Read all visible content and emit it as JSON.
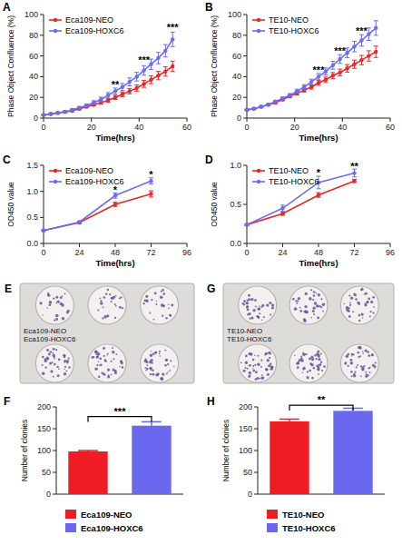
{
  "chart_data": [
    {
      "type": "line",
      "title": "A",
      "x_label": "Time(hrs)",
      "y_label": "Phase Object Confluence (%)",
      "x": [
        0,
        3,
        6,
        9,
        12,
        15,
        18,
        21,
        24,
        27,
        30,
        33,
        36,
        39,
        42,
        45,
        48,
        51,
        54
      ],
      "xlim": [
        0,
        60
      ],
      "xticks": [
        0,
        20,
        40,
        60
      ],
      "ylim": [
        0,
        100
      ],
      "yticks": [
        0,
        20,
        40,
        60,
        80,
        100
      ],
      "legend": "top-left",
      "marker": "circle",
      "series": [
        {
          "name": "Eca109-NEO",
          "color": "#e8272b",
          "values": [
            3,
            4,
            5,
            6,
            7,
            9,
            11,
            13,
            15,
            17,
            20,
            23,
            26,
            29,
            33,
            37,
            41,
            45,
            50
          ],
          "error": [
            0.5,
            0.5,
            0.5,
            0.7,
            0.8,
            1,
            1,
            1.2,
            1.5,
            1.8,
            2,
            2.3,
            2.6,
            3,
            3.3,
            3.7,
            4,
            4.5,
            5
          ]
        },
        {
          "name": "Eca109-HOXC6",
          "color": "#6b6cf0",
          "values": [
            3,
            4,
            5,
            6,
            8,
            10,
            12,
            15,
            18,
            22,
            26,
            30,
            35,
            40,
            46,
            52,
            58,
            65,
            76
          ],
          "error": [
            0.5,
            0.5,
            0.6,
            0.8,
            1,
            1.2,
            1.5,
            1.8,
            2.2,
            2.6,
            3,
            3.4,
            3.8,
            4.2,
            4.6,
            5,
            5.5,
            6,
            7
          ]
        }
      ],
      "annotations": [
        {
          "x": 30,
          "y": 32,
          "text": "**"
        },
        {
          "x": 42,
          "y": 55,
          "text": "***"
        },
        {
          "x": 54,
          "y": 87,
          "text": "***"
        }
      ]
    },
    {
      "type": "line",
      "title": "B",
      "x_label": "Time(hrs)",
      "y_label": "Phase Object Confluence (%)",
      "x": [
        0,
        3,
        6,
        9,
        12,
        15,
        18,
        21,
        24,
        27,
        30,
        33,
        36,
        39,
        42,
        45,
        48,
        51,
        54
      ],
      "xlim": [
        0,
        60
      ],
      "xticks": [
        0,
        20,
        40,
        60
      ],
      "ylim": [
        0,
        100
      ],
      "yticks": [
        0,
        20,
        40,
        60,
        80,
        100
      ],
      "legend": "top-left",
      "marker": "circle",
      "series": [
        {
          "name": "TE10-NEO",
          "color": "#e8272b",
          "values": [
            8,
            9,
            11,
            13,
            15,
            18,
            21,
            24,
            27,
            30,
            34,
            37,
            41,
            44,
            48,
            52,
            56,
            60,
            64
          ],
          "error": [
            0.5,
            0.6,
            0.7,
            0.8,
            1,
            1.2,
            1.4,
            1.6,
            1.8,
            2,
            2.3,
            2.6,
            3,
            3.3,
            3.6,
            4,
            4.5,
            5,
            5.5
          ]
        },
        {
          "name": "TE10-HOXC6",
          "color": "#6b6cf0",
          "values": [
            8,
            9,
            11,
            13,
            16,
            19,
            22,
            26,
            30,
            35,
            40,
            45,
            51,
            57,
            63,
            69,
            75,
            81,
            87
          ],
          "error": [
            0.5,
            0.6,
            0.7,
            0.9,
            1.1,
            1.3,
            1.6,
            1.9,
            2.2,
            2.6,
            3,
            3.4,
            3.8,
            4.2,
            4.6,
            5,
            5.5,
            6,
            7
          ]
        }
      ],
      "annotations": [
        {
          "x": 30,
          "y": 46,
          "text": "***"
        },
        {
          "x": 39,
          "y": 64,
          "text": "***"
        },
        {
          "x": 48,
          "y": 83,
          "text": "***"
        }
      ]
    },
    {
      "type": "line",
      "title": "C",
      "x_label": "Time(hrs)",
      "y_label": "OD450 value",
      "x": [
        0,
        24,
        48,
        72
      ],
      "xlim": [
        0,
        96
      ],
      "xticks": [
        0,
        24,
        48,
        72,
        96
      ],
      "ylim": [
        0,
        1.5
      ],
      "yticks": [
        {
          "value": 0,
          "label": "0.0"
        },
        0.5,
        {
          "value": 1,
          "label": "1.0"
        },
        1.5
      ],
      "legend": "top-left",
      "marker": "circle",
      "series": [
        {
          "name": "Eca109-NEO",
          "color": "#e8272b",
          "values": [
            0.25,
            0.4,
            0.75,
            0.95
          ],
          "error": [
            0.01,
            0.02,
            0.04,
            0.06
          ]
        },
        {
          "name": "Eca109-HOXC6",
          "color": "#6b6cf0",
          "values": [
            0.25,
            0.41,
            0.92,
            1.2
          ],
          "error": [
            0.01,
            0.02,
            0.05,
            0.06
          ]
        }
      ],
      "annotations": [
        {
          "x": 48,
          "y": 1.02,
          "text": "*"
        },
        {
          "x": 72,
          "y": 1.3,
          "text": "*"
        }
      ]
    },
    {
      "type": "line",
      "title": "D",
      "x_label": "Time(hrs)",
      "y_label": "OD450 value",
      "x": [
        0,
        24,
        48,
        72
      ],
      "xlim": [
        0,
        96
      ],
      "xticks": [
        0,
        24,
        48,
        72,
        96
      ],
      "ylim": [
        0,
        1
      ],
      "yticks": [
        {
          "value": 0,
          "label": "0.0"
        },
        0.5,
        {
          "value": 1,
          "label": "1.0"
        }
      ],
      "legend": "top-left",
      "marker": "circle",
      "series": [
        {
          "name": "TE10-NEO",
          "color": "#e8272b",
          "values": [
            0.24,
            0.38,
            0.62,
            0.8
          ],
          "error": [
            0.01,
            0.02,
            0.03,
            0.02
          ]
        },
        {
          "name": "TE10-HOXC6",
          "color": "#6b6cf0",
          "values": [
            0.24,
            0.45,
            0.78,
            0.9
          ],
          "error": [
            0.01,
            0.04,
            0.08,
            0.05
          ]
        }
      ],
      "annotations": [
        {
          "x": 48,
          "y": 0.9,
          "text": "*"
        },
        {
          "x": 72,
          "y": 0.98,
          "text": "**"
        }
      ]
    },
    {
      "type": "image",
      "title": "E",
      "labels": [
        "Eca109-NEO",
        "Eca109-HOXC6"
      ]
    },
    {
      "type": "bar",
      "title": "F",
      "y_label": "Number of clonies",
      "categories": [
        "Eca109-NEO",
        "Eca109-HOXC6"
      ],
      "values": [
        98,
        157
      ],
      "error": [
        2,
        9
      ],
      "colors": [
        "#ee1c25",
        "#6b68f0"
      ],
      "ylim": [
        0,
        200
      ],
      "yticks": [
        0,
        50,
        100,
        150,
        200
      ],
      "tick_labels": "y",
      "legend": "bottom",
      "annotations": [
        {
          "y": 178,
          "text": "***"
        }
      ]
    },
    {
      "type": "image",
      "title": "G",
      "labels": [
        "TE10-NEO",
        "TE10-HOXC6"
      ]
    },
    {
      "type": "bar",
      "title": "H",
      "y_label": "Number of clonies",
      "categories": [
        "TE10-NEO",
        "TE10-HOXC6"
      ],
      "values": [
        167,
        191
      ],
      "error": [
        5,
        6
      ],
      "colors": [
        "#ee1c25",
        "#6b68f0"
      ],
      "ylim": [
        0,
        200
      ],
      "yticks": [
        0,
        50,
        100,
        150,
        200
      ],
      "tick_labels": "y",
      "legend": "bottom",
      "annotations": [
        {
          "y": 204,
          "text": "**"
        }
      ]
    }
  ]
}
